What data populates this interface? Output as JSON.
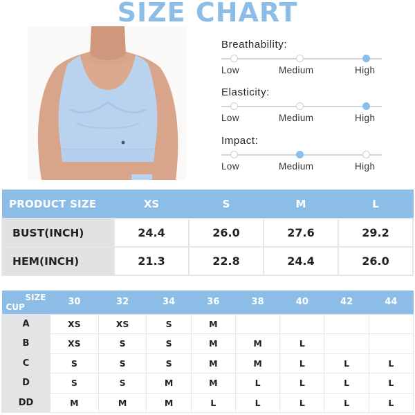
{
  "title": "SIZE CHART",
  "scales": [
    {
      "title": "Breathability:",
      "labels": [
        "Low",
        "Medium",
        "High"
      ],
      "level": "High"
    },
    {
      "title": "Elasticity:",
      "labels": [
        "Low",
        "Medium",
        "High"
      ],
      "level": "High"
    },
    {
      "title": "Impact:",
      "labels": [
        "Low",
        "Medium",
        "High"
      ],
      "level": "Medium"
    }
  ],
  "size_table": {
    "header": "PRODUCT SIZE",
    "sizes": [
      "XS",
      "S",
      "M",
      "L"
    ],
    "rows": [
      {
        "label": "BUST(INCH)",
        "values": [
          "24.4",
          "26.0",
          "27.6",
          "29.2"
        ]
      },
      {
        "label": "HEM(INCH)",
        "values": [
          "21.3",
          "22.8",
          "24.4",
          "26.0"
        ]
      }
    ]
  },
  "cup_table": {
    "size_label": "SIZE",
    "cup_label": "CUP",
    "band_sizes": [
      "30",
      "32",
      "34",
      "36",
      "38",
      "40",
      "42",
      "44"
    ],
    "rows": [
      {
        "cup": "A",
        "values": [
          "XS",
          "XS",
          "S",
          "M",
          "",
          "",
          "",
          ""
        ]
      },
      {
        "cup": "B",
        "values": [
          "XS",
          "S",
          "S",
          "M",
          "M",
          "L",
          "",
          ""
        ]
      },
      {
        "cup": "C",
        "values": [
          "S",
          "S",
          "S",
          "M",
          "M",
          "L",
          "L",
          "L"
        ]
      },
      {
        "cup": "D",
        "values": [
          "S",
          "S",
          "M",
          "M",
          "L",
          "L",
          "L",
          "L"
        ]
      },
      {
        "cup": "DD",
        "values": [
          "M",
          "M",
          "M",
          "L",
          "L",
          "L",
          "L",
          "L"
        ]
      }
    ]
  },
  "colors": {
    "accent": "#8cbde6",
    "row_header_bg": "#e1e2e4",
    "border": "#e4e6e9"
  }
}
